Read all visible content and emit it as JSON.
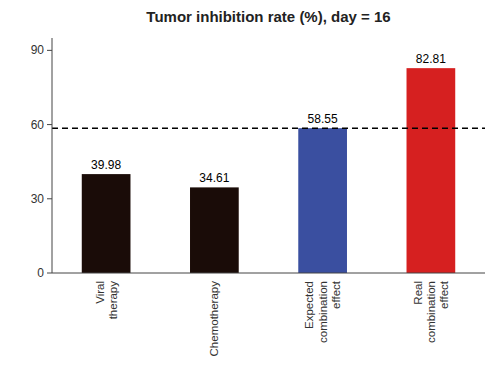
{
  "chart_data": {
    "type": "bar",
    "title": "Tumor inhibition rate (%), day = 16",
    "categories": [
      "Viral\ntherapy",
      "Chemotherapy",
      "Expected\ncombination\neffect",
      "Real\ncombination\neffect"
    ],
    "values": [
      39.98,
      34.61,
      58.55,
      82.81
    ],
    "colors": [
      "#1a0c08",
      "#1a0c08",
      "#3a4fa0",
      "#d62020"
    ],
    "ylim": [
      0,
      95
    ],
    "yticks": [
      0,
      30,
      60,
      90
    ],
    "reference_line": 58.55,
    "data_labels": true,
    "grid": false
  }
}
